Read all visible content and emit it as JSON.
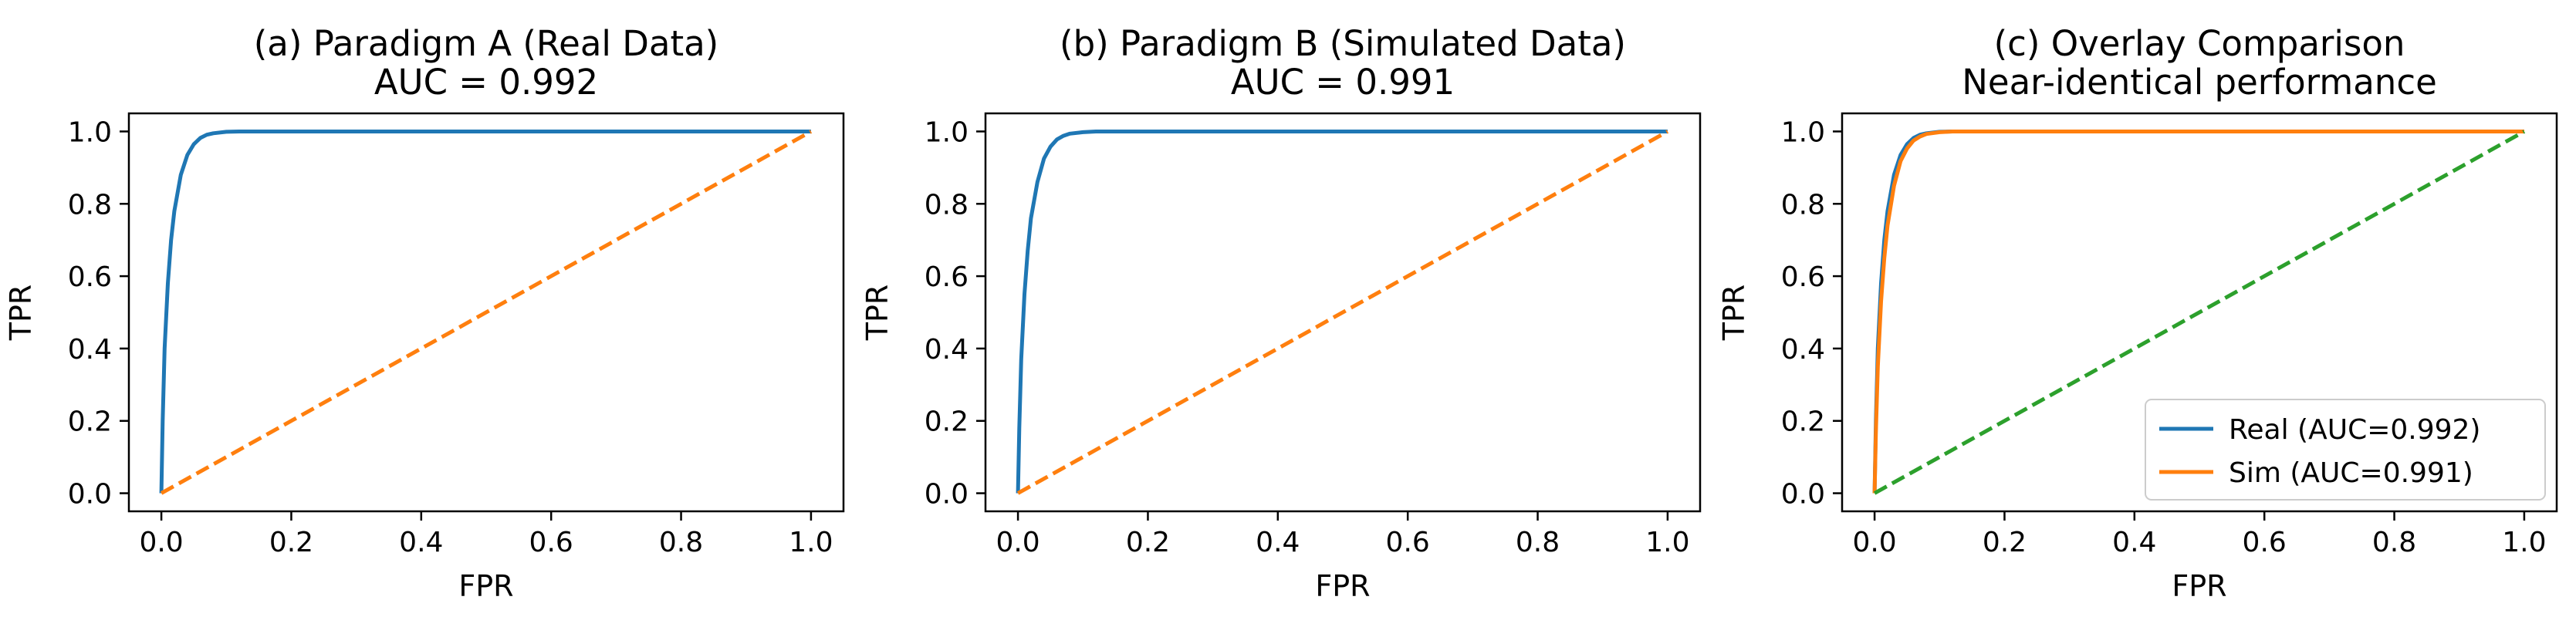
{
  "chart_data": [
    {
      "type": "line",
      "title_line1": "(a) Paradigm A (Real Data)",
      "title_line2": "AUC = 0.992",
      "xlabel": "FPR",
      "ylabel": "TPR",
      "xlim": [
        -0.05,
        1.05
      ],
      "ylim": [
        -0.05,
        1.05
      ],
      "xticks": [
        "0.0",
        "0.2",
        "0.4",
        "0.6",
        "0.8",
        "1.0"
      ],
      "yticks": [
        "0.0",
        "0.2",
        "0.4",
        "0.6",
        "0.8",
        "1.0"
      ],
      "grid": false,
      "series": [
        {
          "color": "#1f77b4",
          "dash": "solid",
          "x": [
            0,
            0.002,
            0.005,
            0.01,
            0.015,
            0.02,
            0.03,
            0.04,
            0.05,
            0.06,
            0.07,
            0.08,
            0.1,
            0.12,
            0.15,
            0.2,
            0.3,
            0.5,
            0.7,
            1.0
          ],
          "y": [
            0,
            0.2,
            0.4,
            0.58,
            0.7,
            0.78,
            0.88,
            0.935,
            0.965,
            0.982,
            0.991,
            0.995,
            0.999,
            1.0,
            1.0,
            1.0,
            1.0,
            1.0,
            1.0,
            1.0
          ]
        },
        {
          "color": "#ff7f0e",
          "dash": "dashed",
          "x": [
            0,
            1
          ],
          "y": [
            0,
            1
          ]
        }
      ]
    },
    {
      "type": "line",
      "title_line1": "(b) Paradigm B (Simulated Data)",
      "title_line2": "AUC = 0.991",
      "xlabel": "FPR",
      "ylabel": "TPR",
      "xlim": [
        -0.05,
        1.05
      ],
      "ylim": [
        -0.05,
        1.05
      ],
      "xticks": [
        "0.0",
        "0.2",
        "0.4",
        "0.6",
        "0.8",
        "1.0"
      ],
      "yticks": [
        "0.0",
        "0.2",
        "0.4",
        "0.6",
        "0.8",
        "1.0"
      ],
      "grid": false,
      "series": [
        {
          "color": "#1f77b4",
          "dash": "solid",
          "x": [
            0,
            0.002,
            0.005,
            0.01,
            0.015,
            0.02,
            0.03,
            0.04,
            0.05,
            0.06,
            0.07,
            0.08,
            0.1,
            0.12,
            0.15,
            0.2,
            0.3,
            0.5,
            0.7,
            1.0
          ],
          "y": [
            0,
            0.18,
            0.37,
            0.55,
            0.67,
            0.76,
            0.86,
            0.925,
            0.958,
            0.978,
            0.988,
            0.994,
            0.998,
            1.0,
            1.0,
            1.0,
            1.0,
            1.0,
            1.0,
            1.0
          ]
        },
        {
          "color": "#ff7f0e",
          "dash": "dashed",
          "x": [
            0,
            1
          ],
          "y": [
            0,
            1
          ]
        }
      ]
    },
    {
      "type": "line",
      "title_line1": "(c) Overlay Comparison",
      "title_line2": "Near-identical performance",
      "xlabel": "FPR",
      "ylabel": "TPR",
      "xlim": [
        -0.05,
        1.05
      ],
      "ylim": [
        -0.05,
        1.05
      ],
      "xticks": [
        "0.0",
        "0.2",
        "0.4",
        "0.6",
        "0.8",
        "1.0"
      ],
      "yticks": [
        "0.0",
        "0.2",
        "0.4",
        "0.6",
        "0.8",
        "1.0"
      ],
      "grid": false,
      "legend": "lower-right",
      "series": [
        {
          "name": "Real (AUC=0.992)",
          "color": "#1f77b4",
          "dash": "solid",
          "x": [
            0,
            0.002,
            0.005,
            0.01,
            0.015,
            0.02,
            0.03,
            0.04,
            0.05,
            0.06,
            0.07,
            0.08,
            0.1,
            0.12,
            0.15,
            0.2,
            0.3,
            0.5,
            0.7,
            1.0
          ],
          "y": [
            0,
            0.2,
            0.4,
            0.58,
            0.7,
            0.78,
            0.88,
            0.935,
            0.965,
            0.982,
            0.991,
            0.995,
            0.999,
            1.0,
            1.0,
            1.0,
            1.0,
            1.0,
            1.0,
            1.0
          ]
        },
        {
          "name": "Sim (AUC=0.991)",
          "color": "#ff7f0e",
          "dash": "solid",
          "x": [
            0,
            0.002,
            0.005,
            0.01,
            0.015,
            0.02,
            0.03,
            0.04,
            0.05,
            0.06,
            0.07,
            0.08,
            0.1,
            0.12,
            0.15,
            0.2,
            0.3,
            0.5,
            0.7,
            1.0
          ],
          "y": [
            0,
            0.17,
            0.35,
            0.53,
            0.65,
            0.74,
            0.85,
            0.918,
            0.953,
            0.975,
            0.986,
            0.993,
            0.998,
            1.0,
            1.0,
            1.0,
            1.0,
            1.0,
            1.0,
            1.0
          ]
        },
        {
          "color": "#2ca02c",
          "dash": "dashed",
          "x": [
            0,
            1
          ],
          "y": [
            0,
            1
          ]
        }
      ]
    }
  ]
}
